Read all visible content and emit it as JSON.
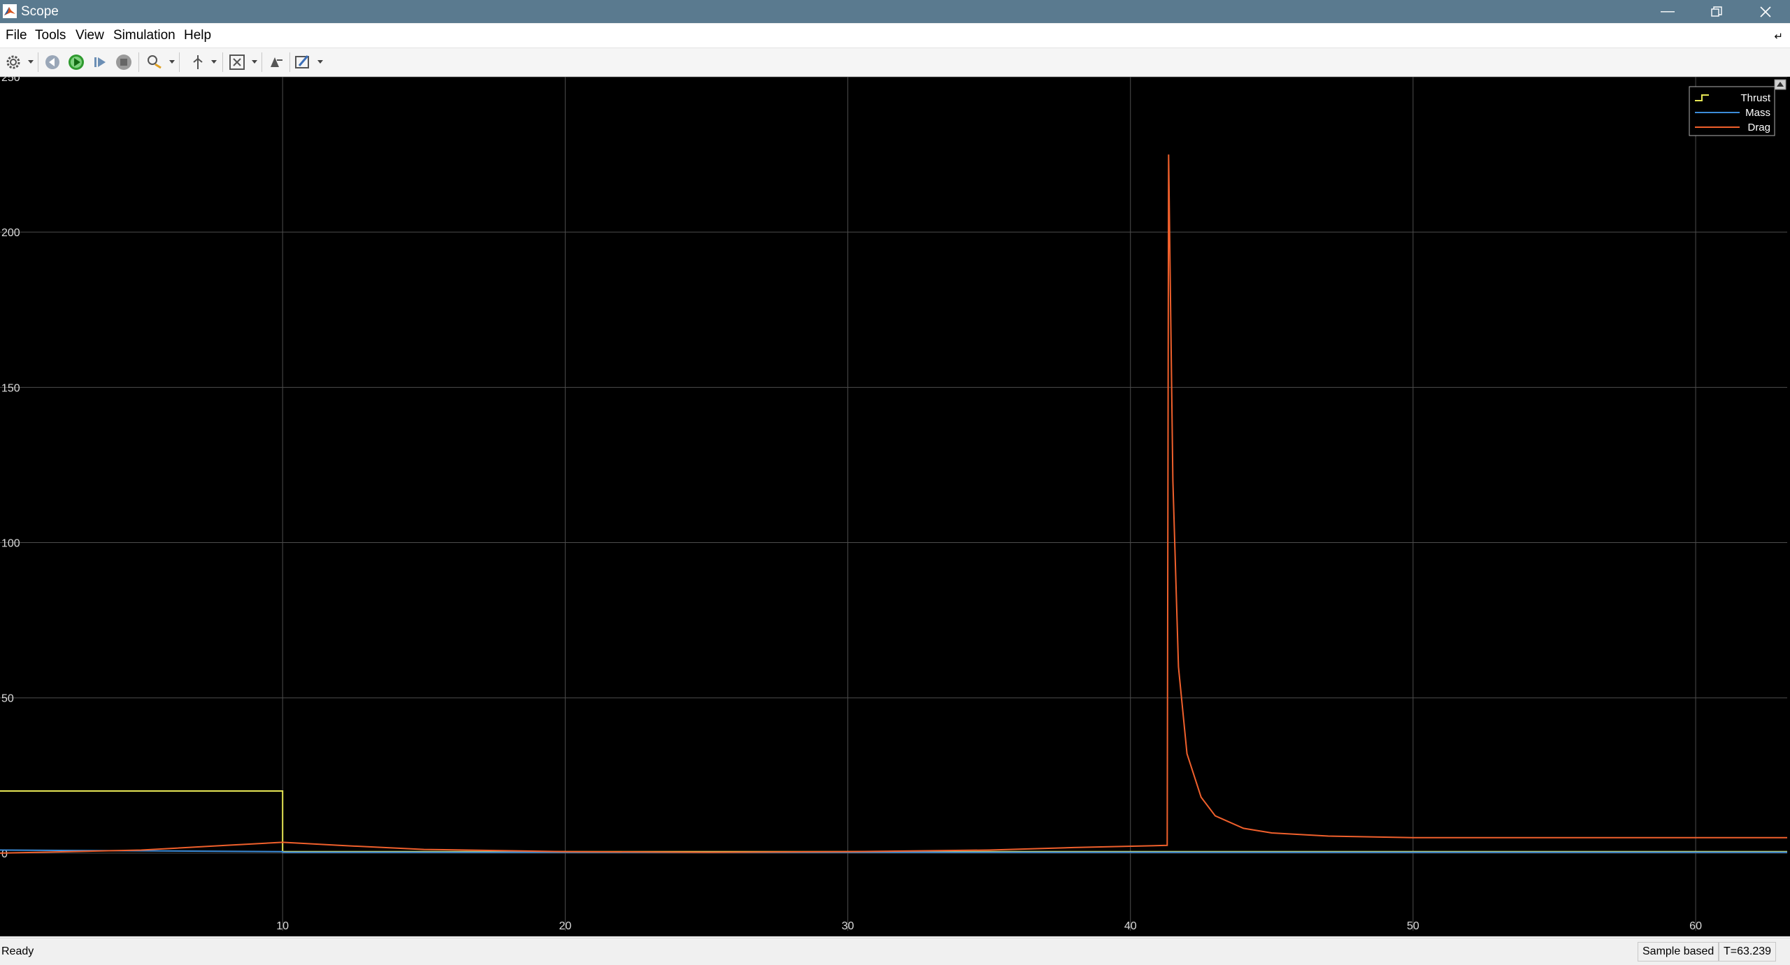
{
  "window": {
    "title": "Scope",
    "logo_icon": "matlab-logo-icon",
    "controls": [
      "minimize-icon",
      "restore-icon",
      "close-icon"
    ]
  },
  "menu": {
    "file": "File",
    "tools": "Tools",
    "view": "View",
    "simulation": "Simulation",
    "help": "Help"
  },
  "toolbar": {
    "icons": [
      "settings-gear-icon",
      "step-back-icon",
      "run-icon",
      "step-forward-icon",
      "stop-icon",
      "highlight-icon",
      "cursor-icon",
      "zoom-fit-icon",
      "signal-export-icon",
      "style-edit-icon"
    ]
  },
  "statusbar": {
    "status": "Ready",
    "mode": "Sample based",
    "time": "T=63.239"
  },
  "colors": {
    "plot_background": "#000000",
    "grid": "#4d4d4d",
    "thrust": "#e6e655",
    "mass": "#3c8cd8",
    "drag": "#f0602c"
  },
  "chart_data": {
    "type": "line",
    "title": "",
    "xlabel": "",
    "ylabel": "",
    "xlim": [
      0,
      63.239
    ],
    "ylim": [
      -25,
      250
    ],
    "xticks": [
      10,
      20,
      30,
      40,
      50,
      60
    ],
    "yticks": [
      0,
      50,
      100,
      150,
      200,
      250
    ],
    "grid": true,
    "legend_position": "top-right",
    "series": [
      {
        "name": "Thrust",
        "color": "#e6e655",
        "x": [
          0,
          10,
          10,
          63.239
        ],
        "y": [
          20,
          20,
          0.5,
          0.5
        ]
      },
      {
        "name": "Mass",
        "color": "#3c8cd8",
        "x": [
          0,
          10,
          10,
          63.239
        ],
        "y": [
          1,
          0.5,
          0.3,
          0.3
        ]
      },
      {
        "name": "Drag",
        "color": "#f0602c",
        "x": [
          0,
          5,
          8,
          10,
          12,
          15,
          20,
          25,
          30,
          35,
          38,
          41.3,
          41.35,
          41.5,
          41.7,
          42.0,
          42.5,
          43.0,
          44.0,
          45.0,
          47.0,
          50.0,
          55.0,
          60.0,
          63.239
        ],
        "y": [
          0,
          1,
          2.5,
          3.5,
          2.5,
          1.2,
          0.5,
          0.3,
          0.5,
          1,
          1.8,
          2.5,
          225,
          120,
          60,
          32,
          18,
          12,
          8,
          6.5,
          5.5,
          5,
          5,
          5,
          5
        ]
      }
    ]
  }
}
